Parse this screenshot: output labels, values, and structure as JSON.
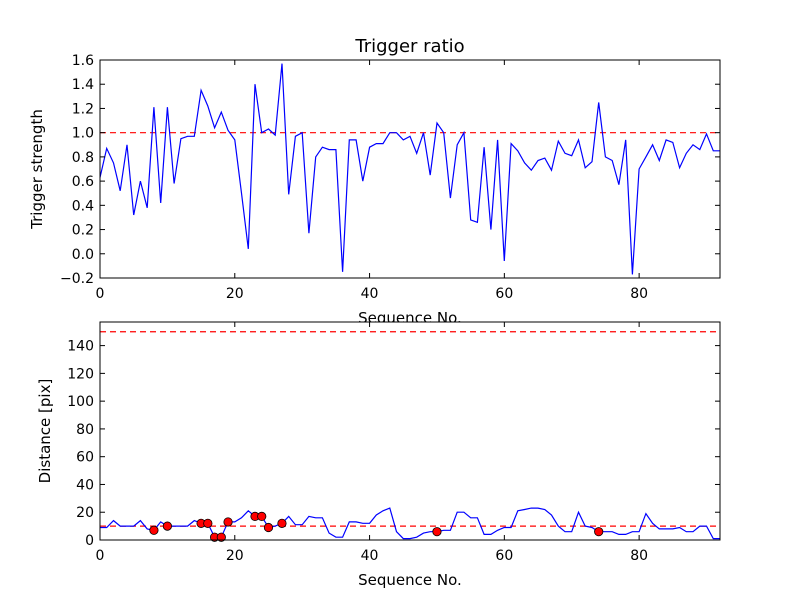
{
  "chart_data": [
    {
      "type": "line",
      "title": "Trigger ratio",
      "xlabel": "Sequence No.",
      "ylabel": "Trigger strength",
      "xlim": [
        0,
        92
      ],
      "ylim": [
        -0.2,
        1.6
      ],
      "xticks": [
        0,
        20,
        40,
        60,
        80
      ],
      "xtick_labels": [
        "0",
        "20",
        "40",
        "60",
        "80"
      ],
      "yticks": [
        -0.2,
        0.0,
        0.2,
        0.4,
        0.6,
        0.8,
        1.0,
        1.2,
        1.4,
        1.6
      ],
      "ytick_labels": [
        "−0.2",
        "0.0",
        "0.2",
        "0.4",
        "0.6",
        "0.8",
        "1.0",
        "1.2",
        "1.4",
        "1.6"
      ],
      "grid": false,
      "line_color": "#0000ff",
      "threshold_color": "#ff0000",
      "threshold_lines": [
        1.0
      ],
      "series": [
        {
          "x": [
            0,
            1,
            2,
            3,
            4,
            5,
            6,
            7,
            8,
            9,
            10,
            11,
            12,
            13,
            14,
            15,
            16,
            17,
            18,
            19,
            20,
            21,
            22,
            23,
            24,
            25,
            26,
            27,
            28,
            29,
            30,
            31,
            32,
            33,
            34,
            35,
            36,
            37,
            38,
            39,
            40,
            41,
            42,
            43,
            44,
            45,
            46,
            47,
            48,
            49,
            50,
            51,
            52,
            53,
            54,
            55,
            56,
            57,
            58,
            59,
            60,
            61,
            62,
            63,
            64,
            65,
            66,
            67,
            68,
            69,
            70,
            71,
            72,
            73,
            74,
            75,
            76,
            77,
            78,
            79,
            80,
            81,
            82,
            83,
            84,
            85,
            86,
            87,
            88,
            89,
            90,
            91,
            92
          ],
          "y": [
            0.63,
            0.87,
            0.75,
            0.52,
            0.9,
            0.32,
            0.6,
            0.38,
            1.21,
            0.42,
            1.21,
            0.58,
            0.95,
            0.97,
            0.97,
            1.35,
            1.22,
            1.04,
            1.17,
            1.02,
            0.94,
            0.5,
            0.04,
            1.4,
            1.0,
            1.03,
            0.98,
            1.57,
            0.49,
            0.97,
            1.0,
            0.17,
            0.8,
            0.88,
            0.86,
            0.86,
            -0.15,
            0.94,
            0.94,
            0.6,
            0.88,
            0.91,
            0.91,
            1.0,
            1.0,
            0.94,
            0.97,
            0.83,
            1.0,
            0.65,
            1.08,
            1.0,
            0.46,
            0.9,
            1.0,
            0.28,
            0.26,
            0.88,
            0.2,
            0.94,
            -0.06,
            0.91,
            0.85,
            0.75,
            0.69,
            0.77,
            0.79,
            0.69,
            0.93,
            0.83,
            0.81,
            0.94,
            0.71,
            0.76,
            1.25,
            0.8,
            0.77,
            0.57,
            0.94,
            -0.17,
            0.7,
            0.8,
            0.9,
            0.77,
            0.94,
            0.92,
            0.71,
            0.83,
            0.9,
            0.86,
            0.99,
            0.85,
            0.85
          ]
        }
      ]
    },
    {
      "type": "line",
      "title": "",
      "xlabel": "Sequence No.",
      "ylabel": "Distance [pix]",
      "xlim": [
        0,
        92
      ],
      "ylim": [
        0,
        157
      ],
      "xticks": [
        0,
        20,
        40,
        60,
        80
      ],
      "xtick_labels": [
        "0",
        "20",
        "40",
        "60",
        "80"
      ],
      "yticks": [
        0,
        20,
        40,
        60,
        80,
        100,
        120,
        140
      ],
      "ytick_labels": [
        "0",
        "20",
        "40",
        "60",
        "80",
        "100",
        "120",
        "140"
      ],
      "grid": false,
      "line_color": "#0000ff",
      "marker_color": "#ff0000",
      "threshold_color": "#ff0000",
      "threshold_lines": [
        10,
        150
      ],
      "series": [
        {
          "x": [
            0,
            1,
            2,
            3,
            4,
            5,
            6,
            7,
            8,
            9,
            10,
            11,
            12,
            13,
            14,
            15,
            16,
            17,
            18,
            19,
            20,
            21,
            22,
            23,
            24,
            25,
            26,
            27,
            28,
            29,
            30,
            31,
            32,
            33,
            34,
            35,
            36,
            37,
            38,
            39,
            40,
            41,
            42,
            43,
            44,
            45,
            46,
            47,
            48,
            49,
            50,
            51,
            52,
            53,
            54,
            55,
            56,
            57,
            58,
            59,
            60,
            61,
            62,
            63,
            64,
            65,
            66,
            67,
            68,
            69,
            70,
            71,
            72,
            73,
            74,
            75,
            76,
            77,
            78,
            79,
            80,
            81,
            82,
            83,
            84,
            85,
            86,
            87,
            88,
            89,
            90,
            91,
            92
          ],
          "y": [
            9,
            9,
            14,
            10,
            10,
            10,
            14,
            8,
            7,
            13,
            10,
            10,
            10,
            10,
            14,
            12,
            12,
            2,
            2,
            13,
            13,
            16,
            21,
            17,
            17,
            9,
            10,
            12,
            17,
            11,
            11,
            17,
            16,
            16,
            5,
            2,
            2,
            13,
            13,
            12,
            12,
            18,
            21,
            23,
            6,
            1,
            1,
            2,
            5,
            6,
            6,
            7,
            7,
            20,
            20,
            16,
            16,
            4,
            4,
            7,
            9,
            9,
            21,
            22,
            23,
            23,
            22,
            18,
            10,
            6,
            6,
            20,
            10,
            9,
            6,
            6,
            6,
            4,
            4,
            6,
            6,
            19,
            12,
            8,
            8,
            8,
            9,
            6,
            6,
            10,
            10,
            1,
            1
          ]
        }
      ],
      "markers": {
        "x": [
          8,
          10,
          15,
          16,
          17,
          18,
          19,
          23,
          24,
          25,
          27,
          50,
          74
        ],
        "y": [
          7,
          10,
          12,
          12,
          2,
          2,
          13,
          17,
          17,
          9,
          12,
          6,
          6
        ]
      }
    }
  ]
}
